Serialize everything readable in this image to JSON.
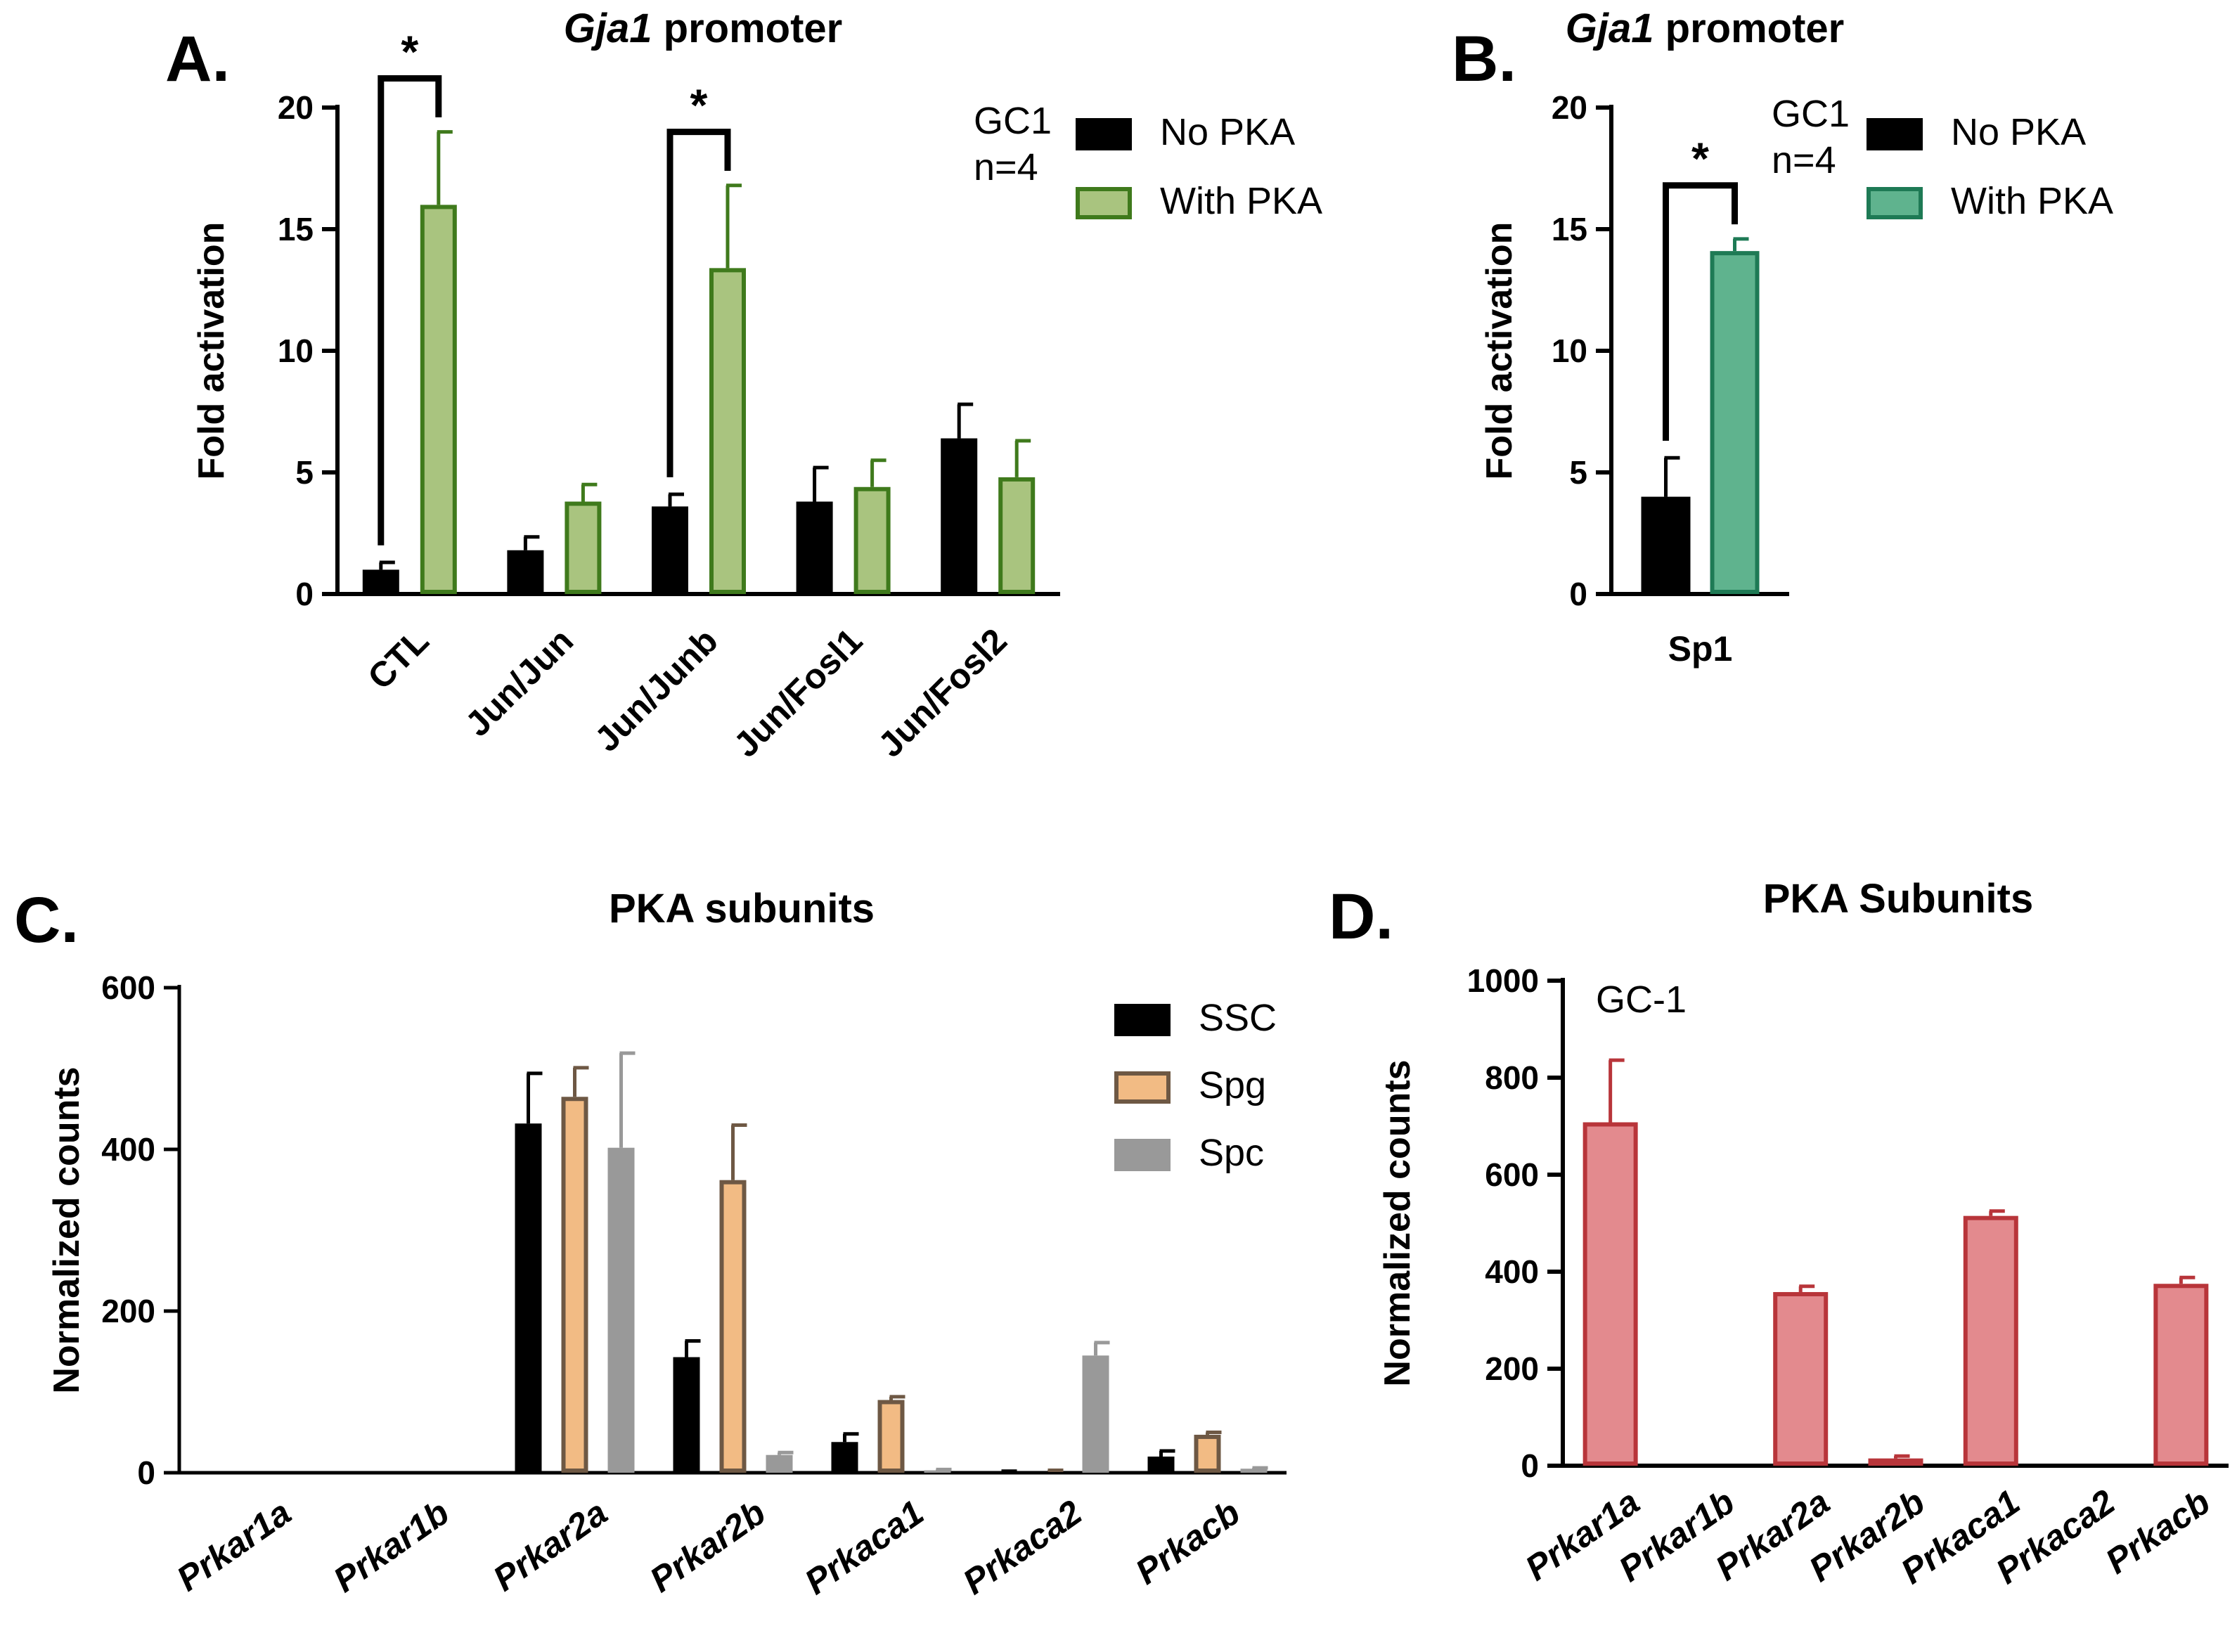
{
  "chart_data": [
    {
      "panel": "A.",
      "type": "bar",
      "title_italic": "Gja1",
      "title_rest": " promoter",
      "ylabel": "Fold activation",
      "xlabel": "",
      "ylim": [
        0,
        20
      ],
      "yticks": [
        0,
        5,
        10,
        15,
        20
      ],
      "categories": [
        "CTL",
        "Jun/Jun",
        "Jun/Junb",
        "Jun/Fosl1",
        "Jun/Fosl2"
      ],
      "annotation": "GC1\nn=4",
      "legend_position": "top-right",
      "series": [
        {
          "name": "No PKA",
          "fill": "#000000",
          "stroke": "#000000",
          "values": [
            1.0,
            1.8,
            3.6,
            3.8,
            6.4
          ],
          "errors": [
            0.3,
            0.55,
            0.5,
            1.4,
            1.4
          ]
        },
        {
          "name": "With PKA",
          "fill": "#a9c47f",
          "stroke": "#3f7a1c",
          "values": [
            16.0,
            3.8,
            13.4,
            4.4,
            4.8
          ],
          "errors": [
            3.0,
            0.7,
            3.4,
            1.1,
            1.5
          ]
        }
      ],
      "significance": [
        {
          "category": "CTL",
          "label": "*"
        },
        {
          "category": "Jun/Junb",
          "label": "*"
        }
      ]
    },
    {
      "panel": "B.",
      "type": "bar",
      "title_italic": "Gja1",
      "title_rest": " promoter",
      "ylabel": "Fold activation",
      "xlabel": "",
      "ylim": [
        0,
        20
      ],
      "yticks": [
        0,
        5,
        10,
        15,
        20
      ],
      "categories": [
        "Sp1"
      ],
      "annotation": "GC1\nn=4",
      "legend_position": "top-right",
      "series": [
        {
          "name": "No PKA",
          "fill": "#000000",
          "stroke": "#000000",
          "values": [
            4.0
          ],
          "errors": [
            1.6
          ]
        },
        {
          "name": "With PKA",
          "fill": "#5fb38e",
          "stroke": "#1e7a55",
          "values": [
            14.1
          ],
          "errors": [
            0.5
          ]
        }
      ],
      "significance": [
        {
          "category": "Sp1",
          "label": "*"
        }
      ]
    },
    {
      "panel": "C.",
      "type": "bar",
      "title": "PKA subunits",
      "ylabel": "Normalized counts",
      "xlabel": "",
      "ylim": [
        0,
        600
      ],
      "yticks": [
        0,
        200,
        400,
        600
      ],
      "categories": [
        "Prkar1a",
        "Prkar1b",
        "Prkar2a",
        "Prkar2b",
        "Prkaca1",
        "Prkaca2",
        "Prkacb"
      ],
      "categories_italic": true,
      "legend_position": "top-right",
      "series": [
        {
          "name": "SSC",
          "fill": "#000000",
          "stroke": "#000000",
          "values": [
            0,
            0,
            432,
            143,
            38,
            1,
            20
          ],
          "errors": [
            0,
            0,
            62,
            20,
            10,
            1,
            7
          ]
        },
        {
          "name": "Spg",
          "fill": "#f2bb84",
          "stroke": "#6e5844",
          "values": [
            0,
            0,
            465,
            362,
            90,
            2,
            47
          ],
          "errors": [
            0,
            0,
            36,
            68,
            4,
            1,
            3
          ]
        },
        {
          "name": "Spc",
          "fill": "#999999",
          "stroke": "#999999",
          "values": [
            0,
            0,
            402,
            22,
            3,
            145,
            5
          ],
          "errors": [
            0,
            0,
            117,
            3,
            1,
            16,
            1
          ]
        }
      ]
    },
    {
      "panel": "D.",
      "type": "bar",
      "title": "PKA Subunits",
      "ylabel": "Normalized counts",
      "xlabel": "",
      "ylim": [
        0,
        1000
      ],
      "yticks": [
        0,
        200,
        400,
        600,
        800,
        1000
      ],
      "categories": [
        "Prkar1a",
        "Prkar1b",
        "Prkar2a",
        "Prkar2b",
        "Prkaca1",
        "Prkaca2",
        "Prkacb"
      ],
      "categories_italic": true,
      "annotation": "GC-1",
      "series": [
        {
          "name": "GC-1",
          "fill": "#e38a8e",
          "stroke": "#b8353a",
          "values": [
            708,
            0,
            358,
            15,
            515,
            0,
            375
          ],
          "errors": [
            128,
            0,
            12,
            5,
            10,
            0,
            13
          ]
        }
      ]
    }
  ]
}
